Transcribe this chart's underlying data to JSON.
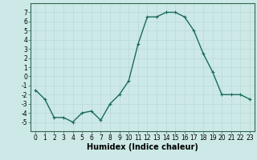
{
  "x": [
    0,
    1,
    2,
    3,
    4,
    5,
    6,
    7,
    8,
    9,
    10,
    11,
    12,
    13,
    14,
    15,
    16,
    17,
    18,
    19,
    20,
    21,
    22,
    23
  ],
  "y": [
    -1.5,
    -2.5,
    -4.5,
    -4.5,
    -5.0,
    -4.0,
    -3.8,
    -4.8,
    -3.0,
    -2.0,
    -0.5,
    3.5,
    6.5,
    6.5,
    7.0,
    7.0,
    6.5,
    5.0,
    2.5,
    0.5,
    -2.0,
    -2.0,
    -2.0,
    -2.5
  ],
  "line_color": "#1a6b5a",
  "marker": "+",
  "markersize": 3,
  "linewidth": 1.0,
  "bg_color": "#cce9e7",
  "grid_color": "#b8d8d6",
  "xlabel": "Humidex (Indice chaleur)",
  "xlabel_fontsize": 7,
  "ylim": [
    -6,
    8
  ],
  "xlim": [
    -0.5,
    23.5
  ],
  "yticks": [
    -5,
    -4,
    -3,
    -2,
    -1,
    0,
    1,
    2,
    3,
    4,
    5,
    6,
    7
  ],
  "xticks": [
    0,
    1,
    2,
    3,
    4,
    5,
    6,
    7,
    8,
    9,
    10,
    11,
    12,
    13,
    14,
    15,
    16,
    17,
    18,
    19,
    20,
    21,
    22,
    23
  ],
  "tick_fontsize": 5.5,
  "spine_color": "#336655"
}
